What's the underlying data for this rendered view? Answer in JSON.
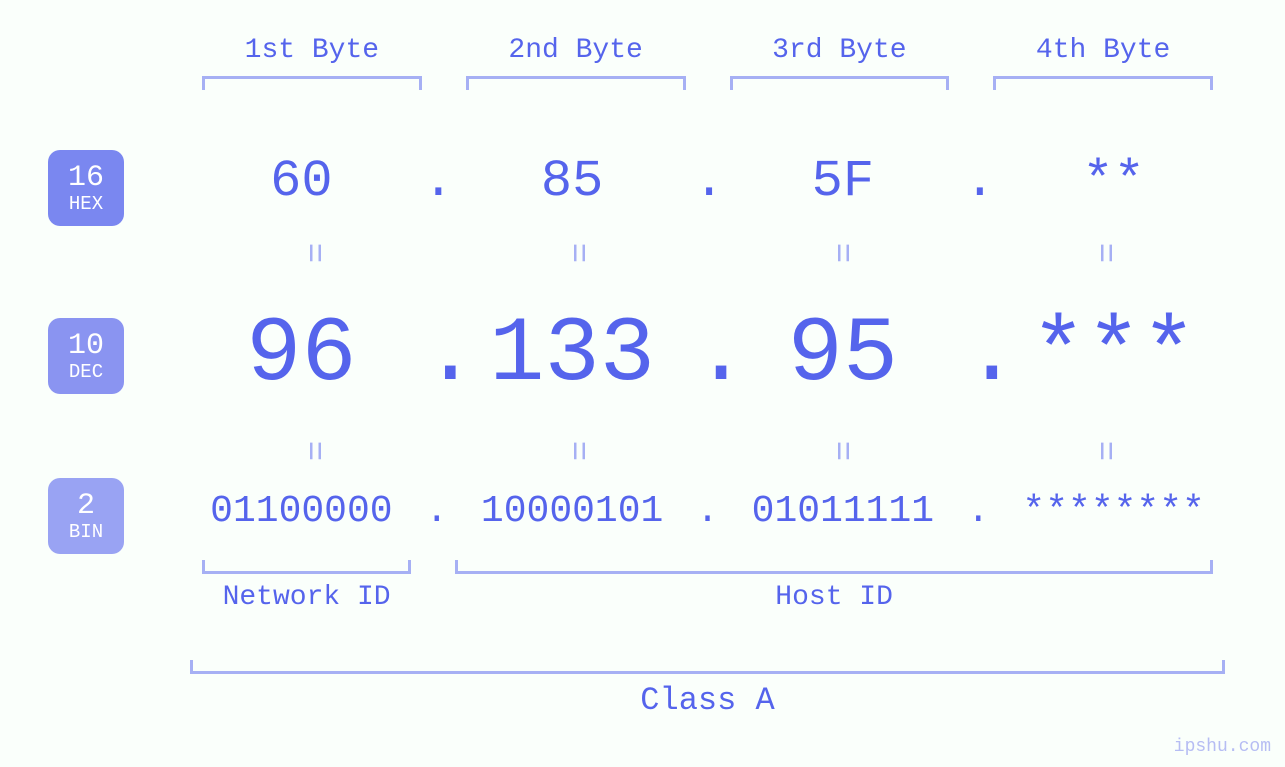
{
  "colors": {
    "text_primary": "#5564ec",
    "bracket": "#a6b0f4",
    "badge_hex": "#7a87f0",
    "badge_dec": "#8a94f1",
    "badge_bin": "#99a3f3",
    "background": "#fafffb"
  },
  "byte_headers": [
    "1st Byte",
    "2nd Byte",
    "3rd Byte",
    "4th Byte"
  ],
  "bases": {
    "hex": {
      "num": "16",
      "label": "HEX"
    },
    "dec": {
      "num": "10",
      "label": "DEC"
    },
    "bin": {
      "num": "2",
      "label": "BIN"
    }
  },
  "values": {
    "hex": [
      "60",
      "85",
      "5F",
      "**"
    ],
    "dec": [
      "96",
      "133",
      "95",
      "***"
    ],
    "bin": [
      "01100000",
      "10000101",
      "01011111",
      "********"
    ]
  },
  "separator": ".",
  "equals_glyph": "=",
  "id_labels": {
    "network": "Network ID",
    "host": "Host ID"
  },
  "class_label": "Class A",
  "watermark": "ipshu.com",
  "fontsizes": {
    "byte_header": 28,
    "hex": 52,
    "dec": 92,
    "bin": 38,
    "id": 28,
    "class": 32
  }
}
